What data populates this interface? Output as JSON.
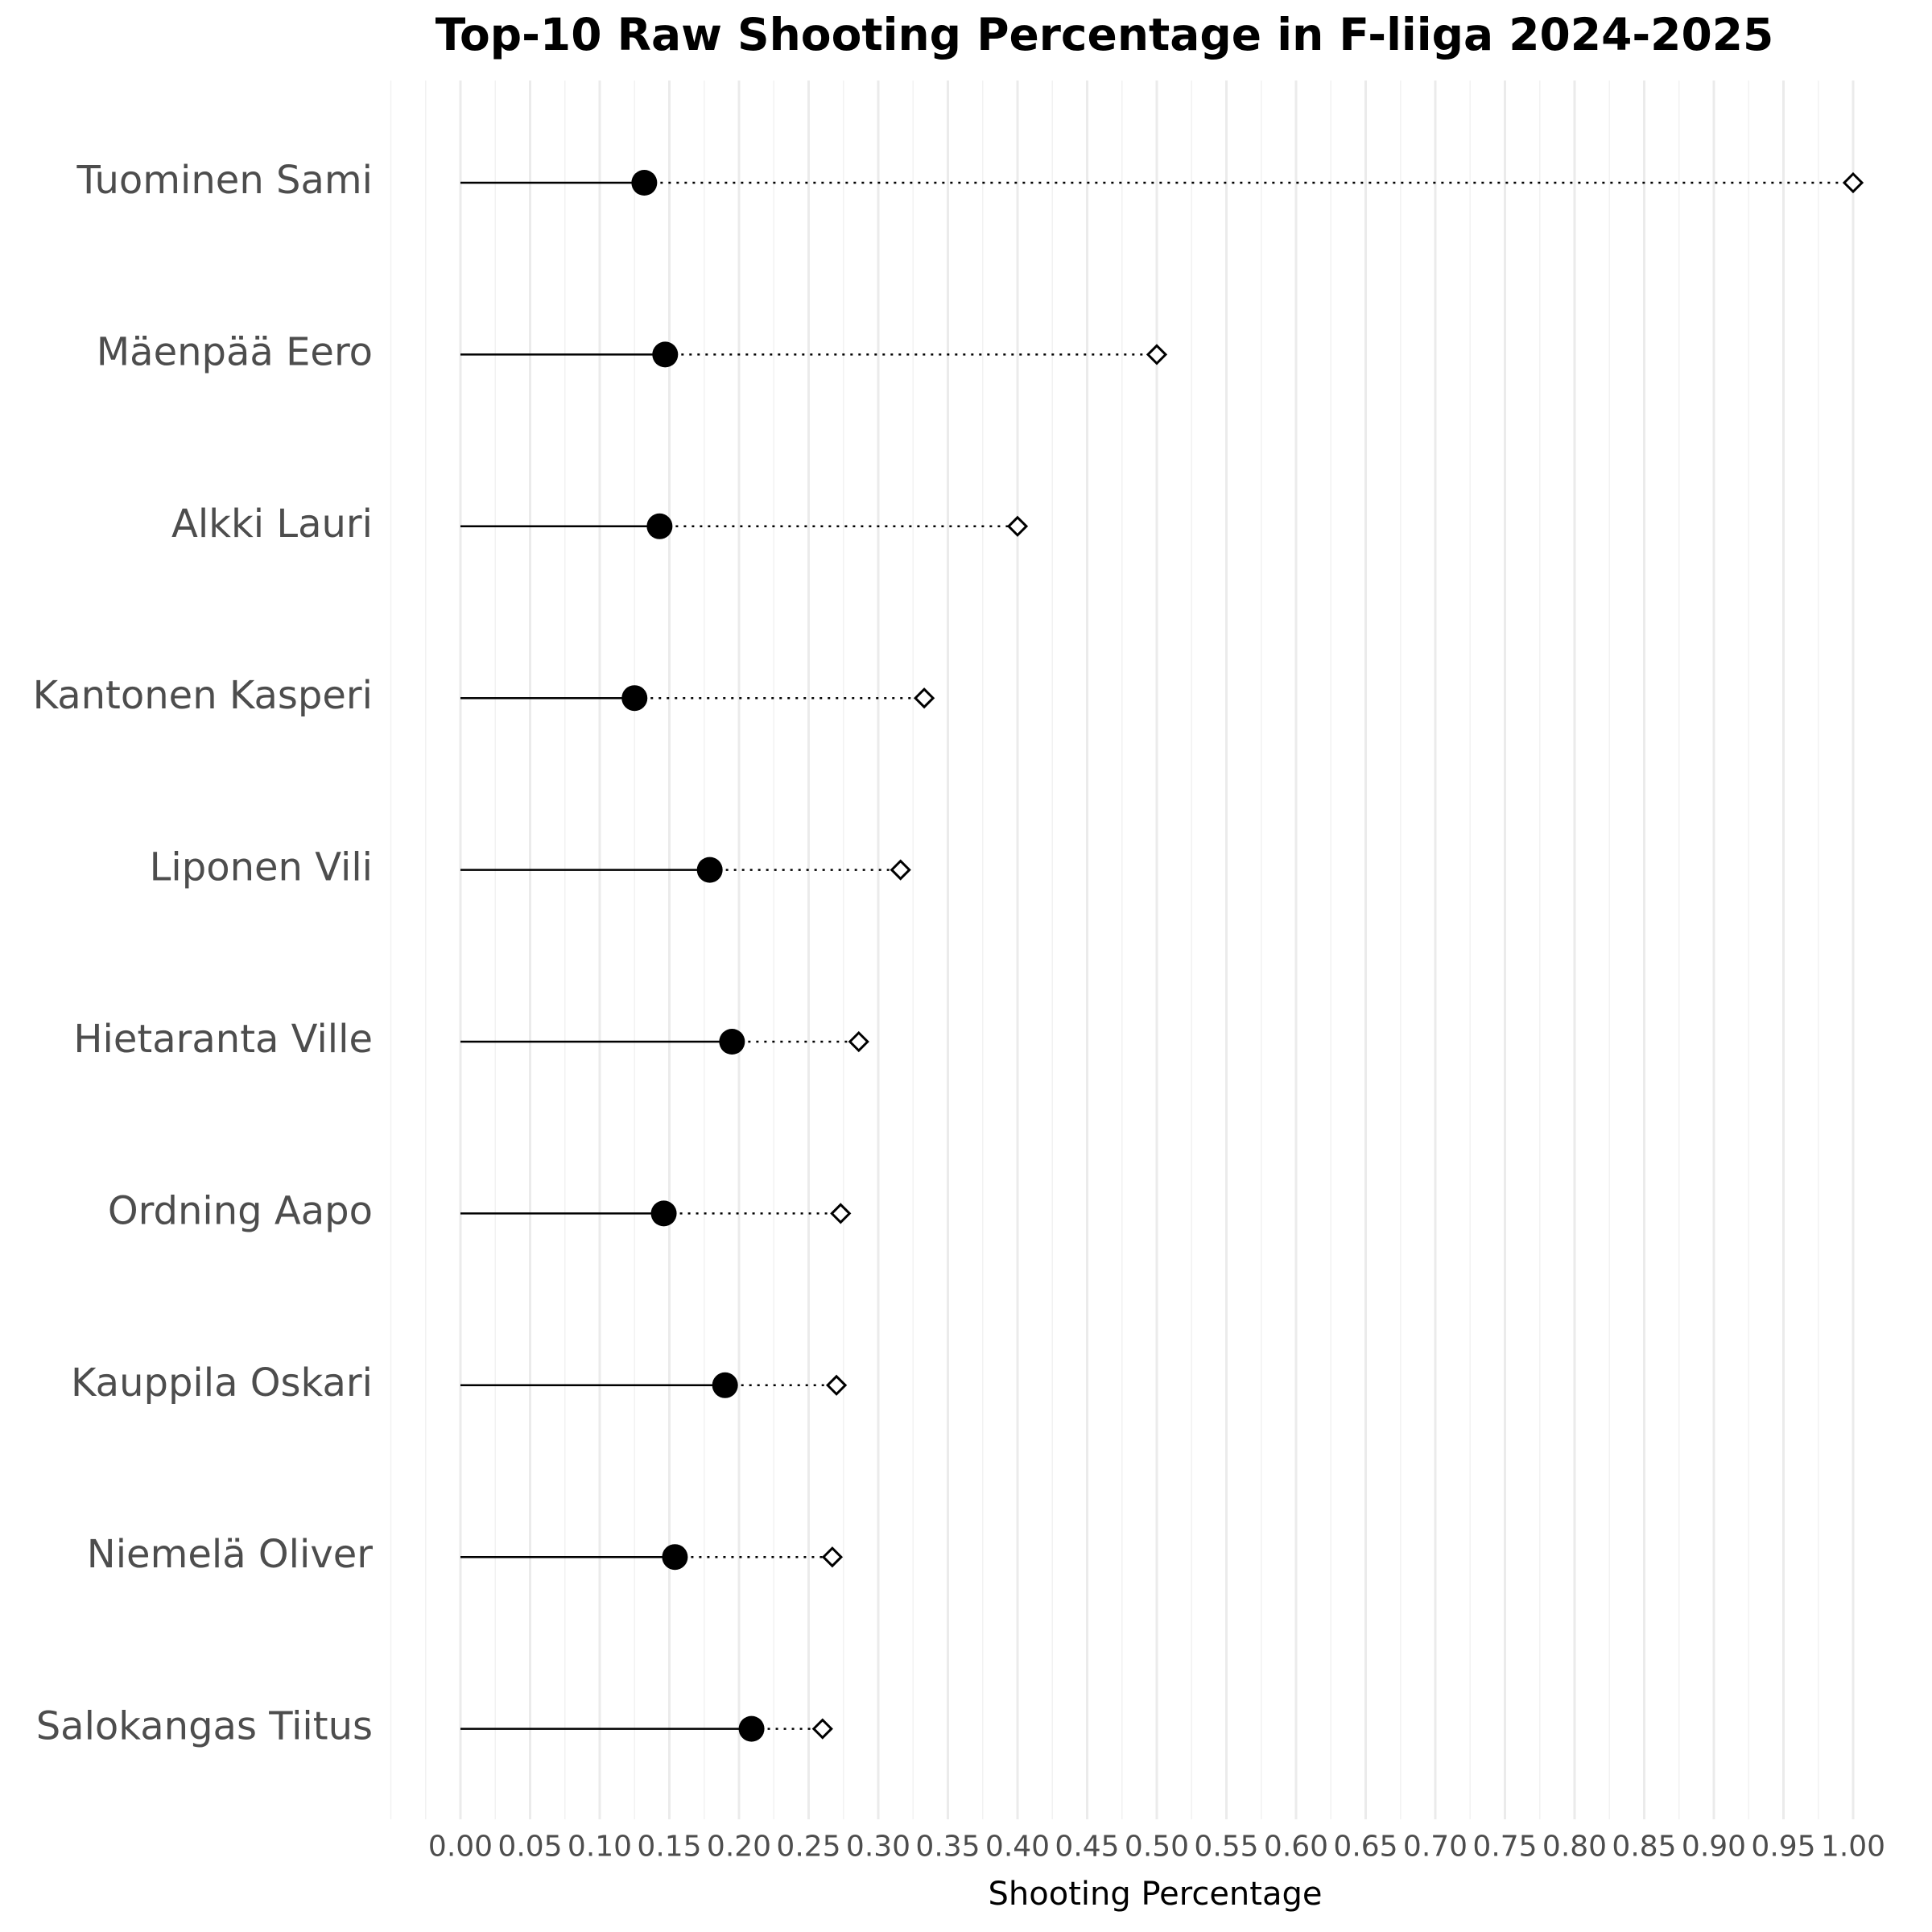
{
  "chart_data": {
    "type": "dot",
    "title": "Top-10 Raw Shooting Percentage in F-liiga 2024-2025",
    "xlabel": "Shooting Percentage",
    "ylabel": "",
    "xlim": [
      -0.05,
      1.02
    ],
    "x_ticks": [
      "0.00",
      "0.05",
      "0.10",
      "0.15",
      "0.20",
      "0.25",
      "0.30",
      "0.35",
      "0.40",
      "0.45",
      "0.50",
      "0.55",
      "0.60",
      "0.65",
      "0.70",
      "0.75",
      "0.80",
      "0.85",
      "0.90",
      "0.95",
      "1.00"
    ],
    "grid": true,
    "categories": [
      "Tuominen Sami",
      "Mäenpää Eero",
      "Alkki Lauri",
      "Kantonen Kasperi",
      "Liponen Vili",
      "Hietaranta Ville",
      "Ordning Aapo",
      "Kauppila Oskari",
      "Niemelä Oliver",
      "Salokangas Tiitus"
    ],
    "series": [
      {
        "marker": "filled-circle",
        "values": [
          0.132,
          0.147,
          0.143,
          0.125,
          0.179,
          0.195,
          0.146,
          0.19,
          0.154,
          0.209
        ]
      },
      {
        "marker": "hollow-diamond",
        "values": [
          1.0,
          0.5,
          0.4,
          0.333,
          0.316,
          0.286,
          0.273,
          0.27,
          0.267,
          0.26
        ]
      }
    ]
  }
}
